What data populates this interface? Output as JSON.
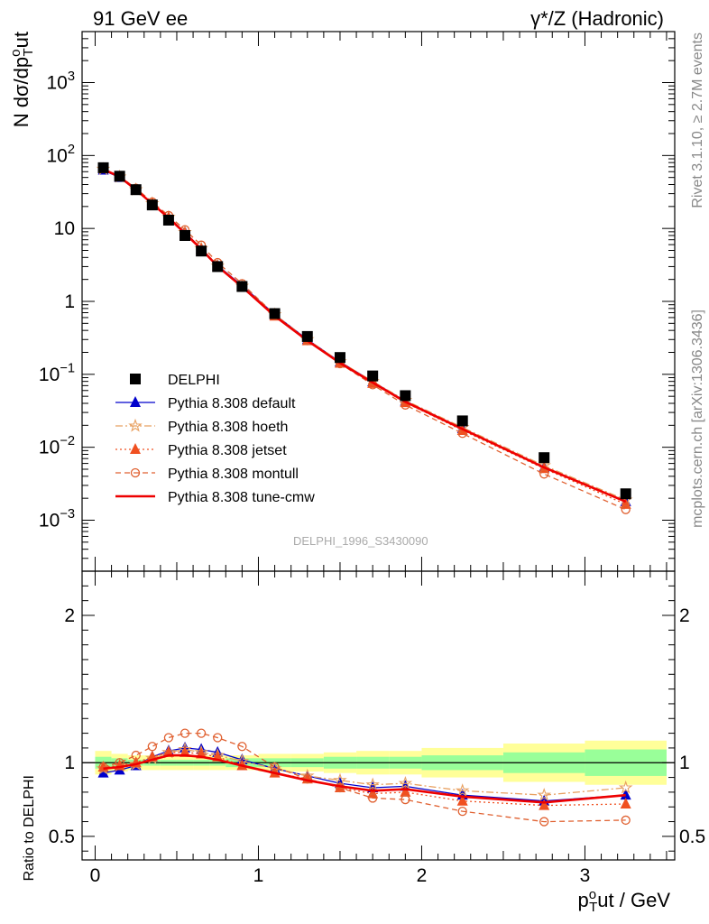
{
  "header": {
    "left": "91 GeV ee",
    "right": "γ*/Z (Hadronic)"
  },
  "side": {
    "rivet": "Rivet 3.1.10, ≥ 2.7M events",
    "mcplots": "mcplots.cern.ch [arXiv:1306.3436]"
  },
  "watermark": "DELPHI_1996_S3430090",
  "colors": {
    "data": "#000000",
    "default": "#0000cc",
    "hoeth": "#e8a060",
    "jetset": "#f05020",
    "montull": "#e06030",
    "cmw": "#ee0000",
    "band_inner": "#99ff99",
    "band_outer": "#ffff99"
  },
  "chart_data": [
    {
      "type": "scatter",
      "ylabel": "N dσ/dp_T^out",
      "yscale": "log",
      "ylim": [
        0.0002,
        5000
      ],
      "xlim": [
        -0.08,
        3.55
      ],
      "yticks": [
        "10^-3",
        "10^-2",
        "10^-1",
        "1",
        "10",
        "10^2",
        "10^3"
      ],
      "legend_position": "lower-left",
      "x": [
        0.05,
        0.15,
        0.25,
        0.35,
        0.45,
        0.55,
        0.65,
        0.75,
        0.9,
        1.1,
        1.3,
        1.5,
        1.7,
        1.9,
        2.25,
        2.75,
        3.25
      ],
      "series": [
        {
          "name": "DELPHI",
          "key": "data",
          "marker": "square",
          "values": [
            68,
            52,
            34,
            21,
            13,
            8.0,
            4.9,
            3.0,
            1.6,
            0.68,
            0.33,
            0.17,
            0.095,
            0.051,
            0.023,
            0.0072,
            0.0023
          ]
        },
        {
          "name": "Pythia 8.308 default",
          "key": "default",
          "marker": "triangle",
          "line": "solid",
          "values": [
            63,
            50,
            33.5,
            21.8,
            14.1,
            8.9,
            5.3,
            3.1,
            1.65,
            0.66,
            0.3,
            0.148,
            0.079,
            0.043,
            0.018,
            0.0053,
            0.0018
          ]
        },
        {
          "name": "Pythia 8.308 hoeth",
          "key": "hoeth",
          "marker": "star",
          "line": "dashdot",
          "values": [
            65,
            51,
            34,
            22,
            14.2,
            8.8,
            5.3,
            3.05,
            1.62,
            0.66,
            0.3,
            0.149,
            0.08,
            0.044,
            0.0187,
            0.0056,
            0.0019
          ]
        },
        {
          "name": "Pythia 8.308 jetset",
          "key": "jetset",
          "marker": "triangle",
          "line": "dotted",
          "values": [
            66,
            51,
            34,
            22,
            14,
            8.6,
            5.2,
            3.05,
            1.58,
            0.63,
            0.29,
            0.142,
            0.075,
            0.041,
            0.017,
            0.0051,
            0.00165
          ]
        },
        {
          "name": "Pythia 8.308 montull",
          "key": "montull",
          "marker": "circle",
          "line": "dashed",
          "values": [
            66,
            52,
            35.5,
            23,
            15,
            9.6,
            5.9,
            3.4,
            1.75,
            0.66,
            0.29,
            0.14,
            0.072,
            0.038,
            0.0155,
            0.0043,
            0.0014
          ]
        },
        {
          "name": "Pythia 8.308 tune-cmw",
          "key": "cmw",
          "marker": "none",
          "line": "solid-thick",
          "values": [
            65,
            51,
            34,
            21.8,
            14,
            8.6,
            5.2,
            3.03,
            1.58,
            0.63,
            0.29,
            0.143,
            0.077,
            0.042,
            0.0178,
            0.0053,
            0.0018
          ]
        }
      ]
    },
    {
      "type": "line",
      "xlabel": "p_T^out / GeV",
      "ylabel": "Ratio to DELPHI",
      "ylim": [
        0.34,
        2.3
      ],
      "xlim": [
        -0.08,
        3.55
      ],
      "yticks": [
        "0.5",
        "1",
        "2"
      ],
      "xticks": [
        "0",
        "1",
        "2",
        "3"
      ],
      "x": [
        0.05,
        0.15,
        0.25,
        0.35,
        0.45,
        0.55,
        0.65,
        0.75,
        0.9,
        1.1,
        1.3,
        1.5,
        1.7,
        1.9,
        2.25,
        2.75,
        3.25
      ],
      "bins": [
        0,
        0.1,
        0.2,
        0.3,
        0.4,
        0.5,
        0.6,
        0.7,
        0.8,
        1.0,
        1.2,
        1.4,
        1.6,
        1.8,
        2.0,
        2.5,
        3.0,
        3.5
      ],
      "band_inner": [
        0.04,
        0.03,
        0.02,
        0.02,
        0.02,
        0.02,
        0.02,
        0.02,
        0.03,
        0.03,
        0.03,
        0.04,
        0.04,
        0.04,
        0.05,
        0.07,
        0.09
      ],
      "band_outer": [
        0.08,
        0.06,
        0.05,
        0.05,
        0.05,
        0.05,
        0.05,
        0.05,
        0.05,
        0.06,
        0.06,
        0.07,
        0.08,
        0.08,
        0.1,
        0.13,
        0.15
      ],
      "series": [
        {
          "name": "Pythia 8.308 default",
          "key": "default",
          "values": [
            0.93,
            0.95,
            0.98,
            1.04,
            1.08,
            1.1,
            1.09,
            1.07,
            1.02,
            0.96,
            0.91,
            0.86,
            0.83,
            0.84,
            0.78,
            0.74,
            0.78
          ]
        },
        {
          "name": "Pythia 8.308 hoeth",
          "key": "hoeth",
          "values": [
            0.96,
            0.98,
            0.99,
            1.03,
            1.07,
            1.09,
            1.07,
            1.05,
            1.01,
            0.96,
            0.91,
            0.88,
            0.85,
            0.86,
            0.81,
            0.78,
            0.83
          ]
        },
        {
          "name": "Pythia 8.308 jetset",
          "key": "jetset",
          "values": [
            0.97,
            0.98,
            1.0,
            1.04,
            1.07,
            1.07,
            1.06,
            1.04,
            0.98,
            0.93,
            0.89,
            0.83,
            0.79,
            0.8,
            0.74,
            0.71,
            0.72
          ]
        },
        {
          "name": "Pythia 8.308 montull",
          "key": "montull",
          "values": [
            0.97,
            1.0,
            1.05,
            1.11,
            1.17,
            1.2,
            1.2,
            1.17,
            1.11,
            0.97,
            0.89,
            0.83,
            0.76,
            0.75,
            0.67,
            0.6,
            0.61
          ]
        },
        {
          "name": "Pythia 8.308 tune-cmw",
          "key": "cmw",
          "values": [
            0.96,
            0.97,
            0.99,
            1.02,
            1.05,
            1.05,
            1.04,
            1.02,
            0.98,
            0.93,
            0.88,
            0.84,
            0.81,
            0.82,
            0.77,
            0.73,
            0.78
          ]
        }
      ]
    }
  ]
}
